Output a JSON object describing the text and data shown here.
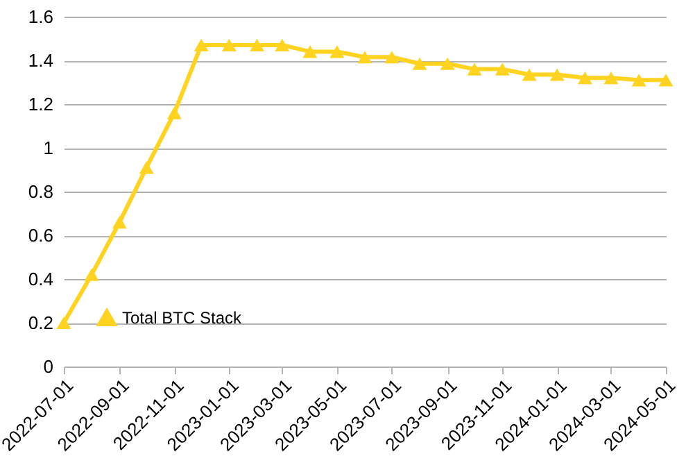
{
  "chart_data": {
    "type": "line",
    "x": [
      "2022-07-01",
      "2022-08-01",
      "2022-09-01",
      "2022-10-01",
      "2022-11-01",
      "2022-12-01",
      "2023-01-01",
      "2023-02-01",
      "2023-03-01",
      "2023-04-01",
      "2023-05-01",
      "2023-06-01",
      "2023-07-01",
      "2023-08-01",
      "2023-09-01",
      "2023-10-01",
      "2023-11-01",
      "2023-12-01",
      "2024-01-01",
      "2024-02-01",
      "2024-03-01",
      "2024-04-01",
      "2024-05-01"
    ],
    "series": [
      {
        "name": "Total BTC Stack",
        "color": "#ffd320",
        "values": [
          0.2,
          0.42,
          0.66,
          0.91,
          1.16,
          1.47,
          1.47,
          1.47,
          1.47,
          1.44,
          1.44,
          1.415,
          1.415,
          1.385,
          1.385,
          1.36,
          1.36,
          1.335,
          1.335,
          1.32,
          1.32,
          1.31,
          1.31
        ]
      }
    ],
    "xlim": [
      "2022-07-01",
      "2024-05-01"
    ],
    "xticks": [
      "2022-07-01",
      "2022-09-01",
      "2022-11-01",
      "2023-01-01",
      "2023-03-01",
      "2023-05-01",
      "2023-07-01",
      "2023-09-01",
      "2023-11-01",
      "2024-01-01",
      "2024-03-01",
      "2024-05-01"
    ],
    "ylim": [
      0,
      1.6
    ],
    "yticks": [
      0,
      0.2,
      0.4,
      0.6,
      0.8,
      1,
      1.2,
      1.4,
      1.6
    ],
    "grid": "y",
    "legend": "bottom left",
    "marker": "triangle",
    "line_style": "solid"
  }
}
